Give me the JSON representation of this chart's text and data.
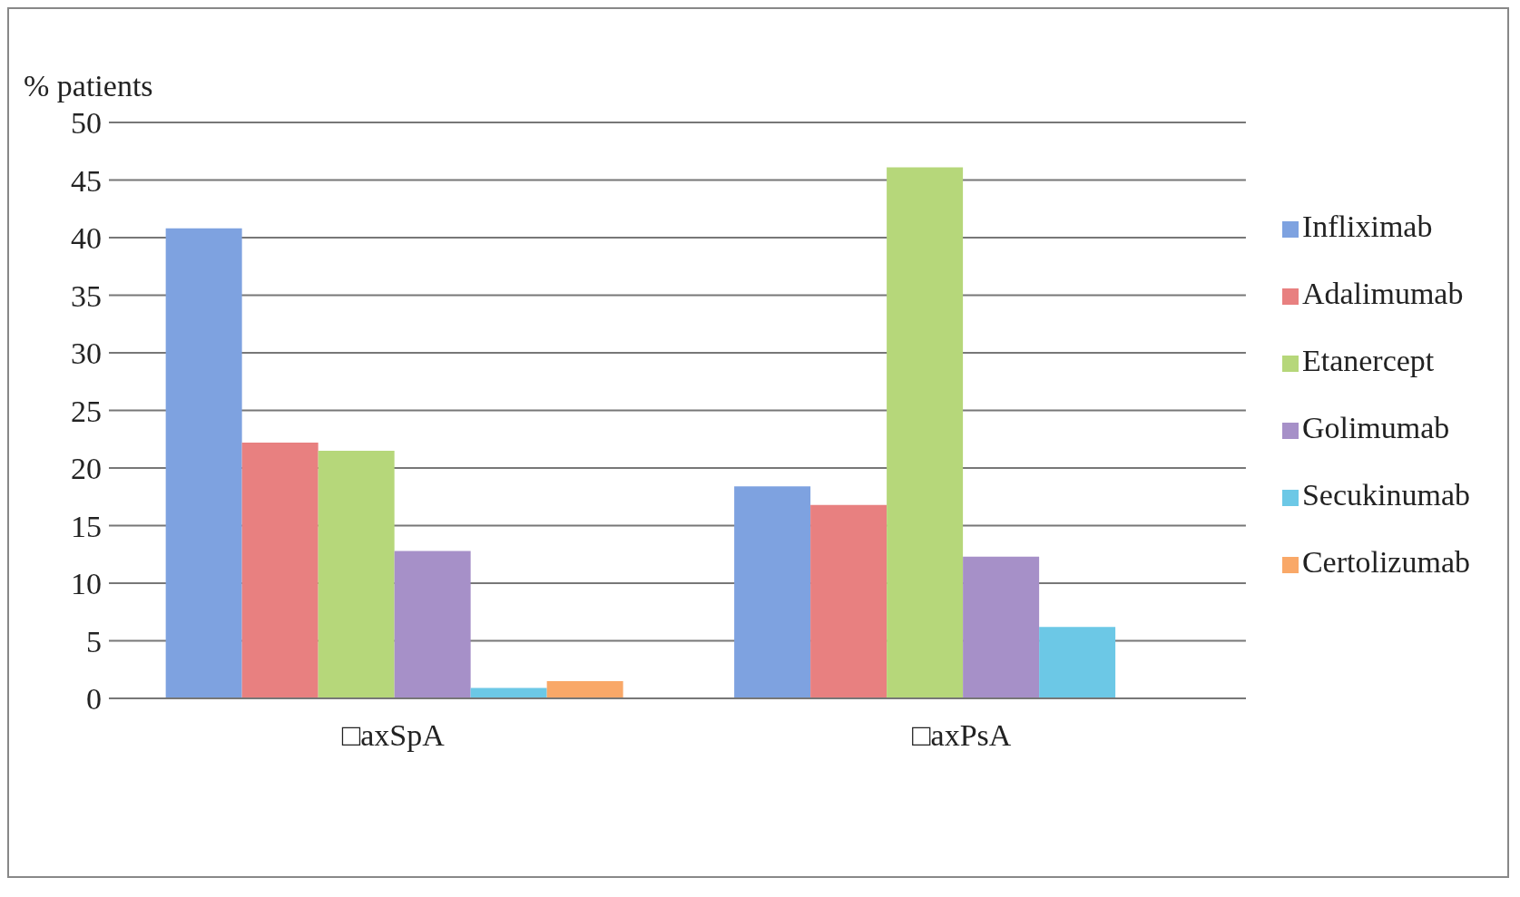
{
  "chart_data": {
    "type": "bar",
    "ylabel": "% patients",
    "categories": [
      "□axSpA",
      "□axPsA"
    ],
    "series": [
      {
        "name": "Infliximab",
        "color": "#7ea2e0",
        "values": [
          40.8,
          18.4
        ]
      },
      {
        "name": "Adalimumab",
        "color": "#e88080",
        "values": [
          22.2,
          16.8
        ]
      },
      {
        "name": "Etanercept",
        "color": "#b6d77a",
        "values": [
          21.5,
          46.1
        ]
      },
      {
        "name": "Golimumab",
        "color": "#a690c8",
        "values": [
          12.8,
          12.3
        ]
      },
      {
        "name": "Secukinumab",
        "color": "#6cc8e6",
        "values": [
          0.9,
          6.2
        ]
      },
      {
        "name": "Certolizumab",
        "color": "#f9a868",
        "values": [
          1.5,
          null
        ]
      }
    ],
    "ylim": [
      0,
      50
    ],
    "yticks": [
      0,
      5,
      10,
      15,
      20,
      25,
      30,
      35,
      40,
      45,
      50
    ],
    "grid": "y",
    "legend": "right"
  }
}
